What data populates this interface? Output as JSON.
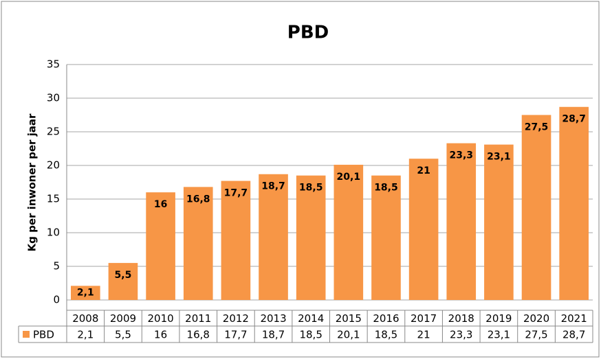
{
  "chart_data": {
    "type": "bar",
    "title": "PBD",
    "y_label": "Kg per inwoner per jaar",
    "categories": [
      "2008",
      "2009",
      "2010",
      "2011",
      "2012",
      "2013",
      "2014",
      "2015",
      "2016",
      "2017",
      "2018",
      "2019",
      "2020",
      "2021"
    ],
    "series": [
      {
        "name": "PBD",
        "color": "#f79646",
        "values": [
          2.1,
          5.5,
          16,
          16.8,
          17.7,
          18.7,
          18.5,
          20.1,
          18.5,
          21,
          23.3,
          23.1,
          27.5,
          28.7
        ],
        "value_labels": [
          "2,1",
          "5,5",
          "16",
          "16,8",
          "17,7",
          "18,7",
          "18,5",
          "20,1",
          "18,5",
          "21",
          "23,3",
          "23,1",
          "27,5",
          "28,7"
        ]
      }
    ],
    "ylim": [
      0,
      35
    ],
    "yticks": [
      0,
      5,
      10,
      15,
      20,
      25,
      30,
      35
    ],
    "grid": true
  }
}
